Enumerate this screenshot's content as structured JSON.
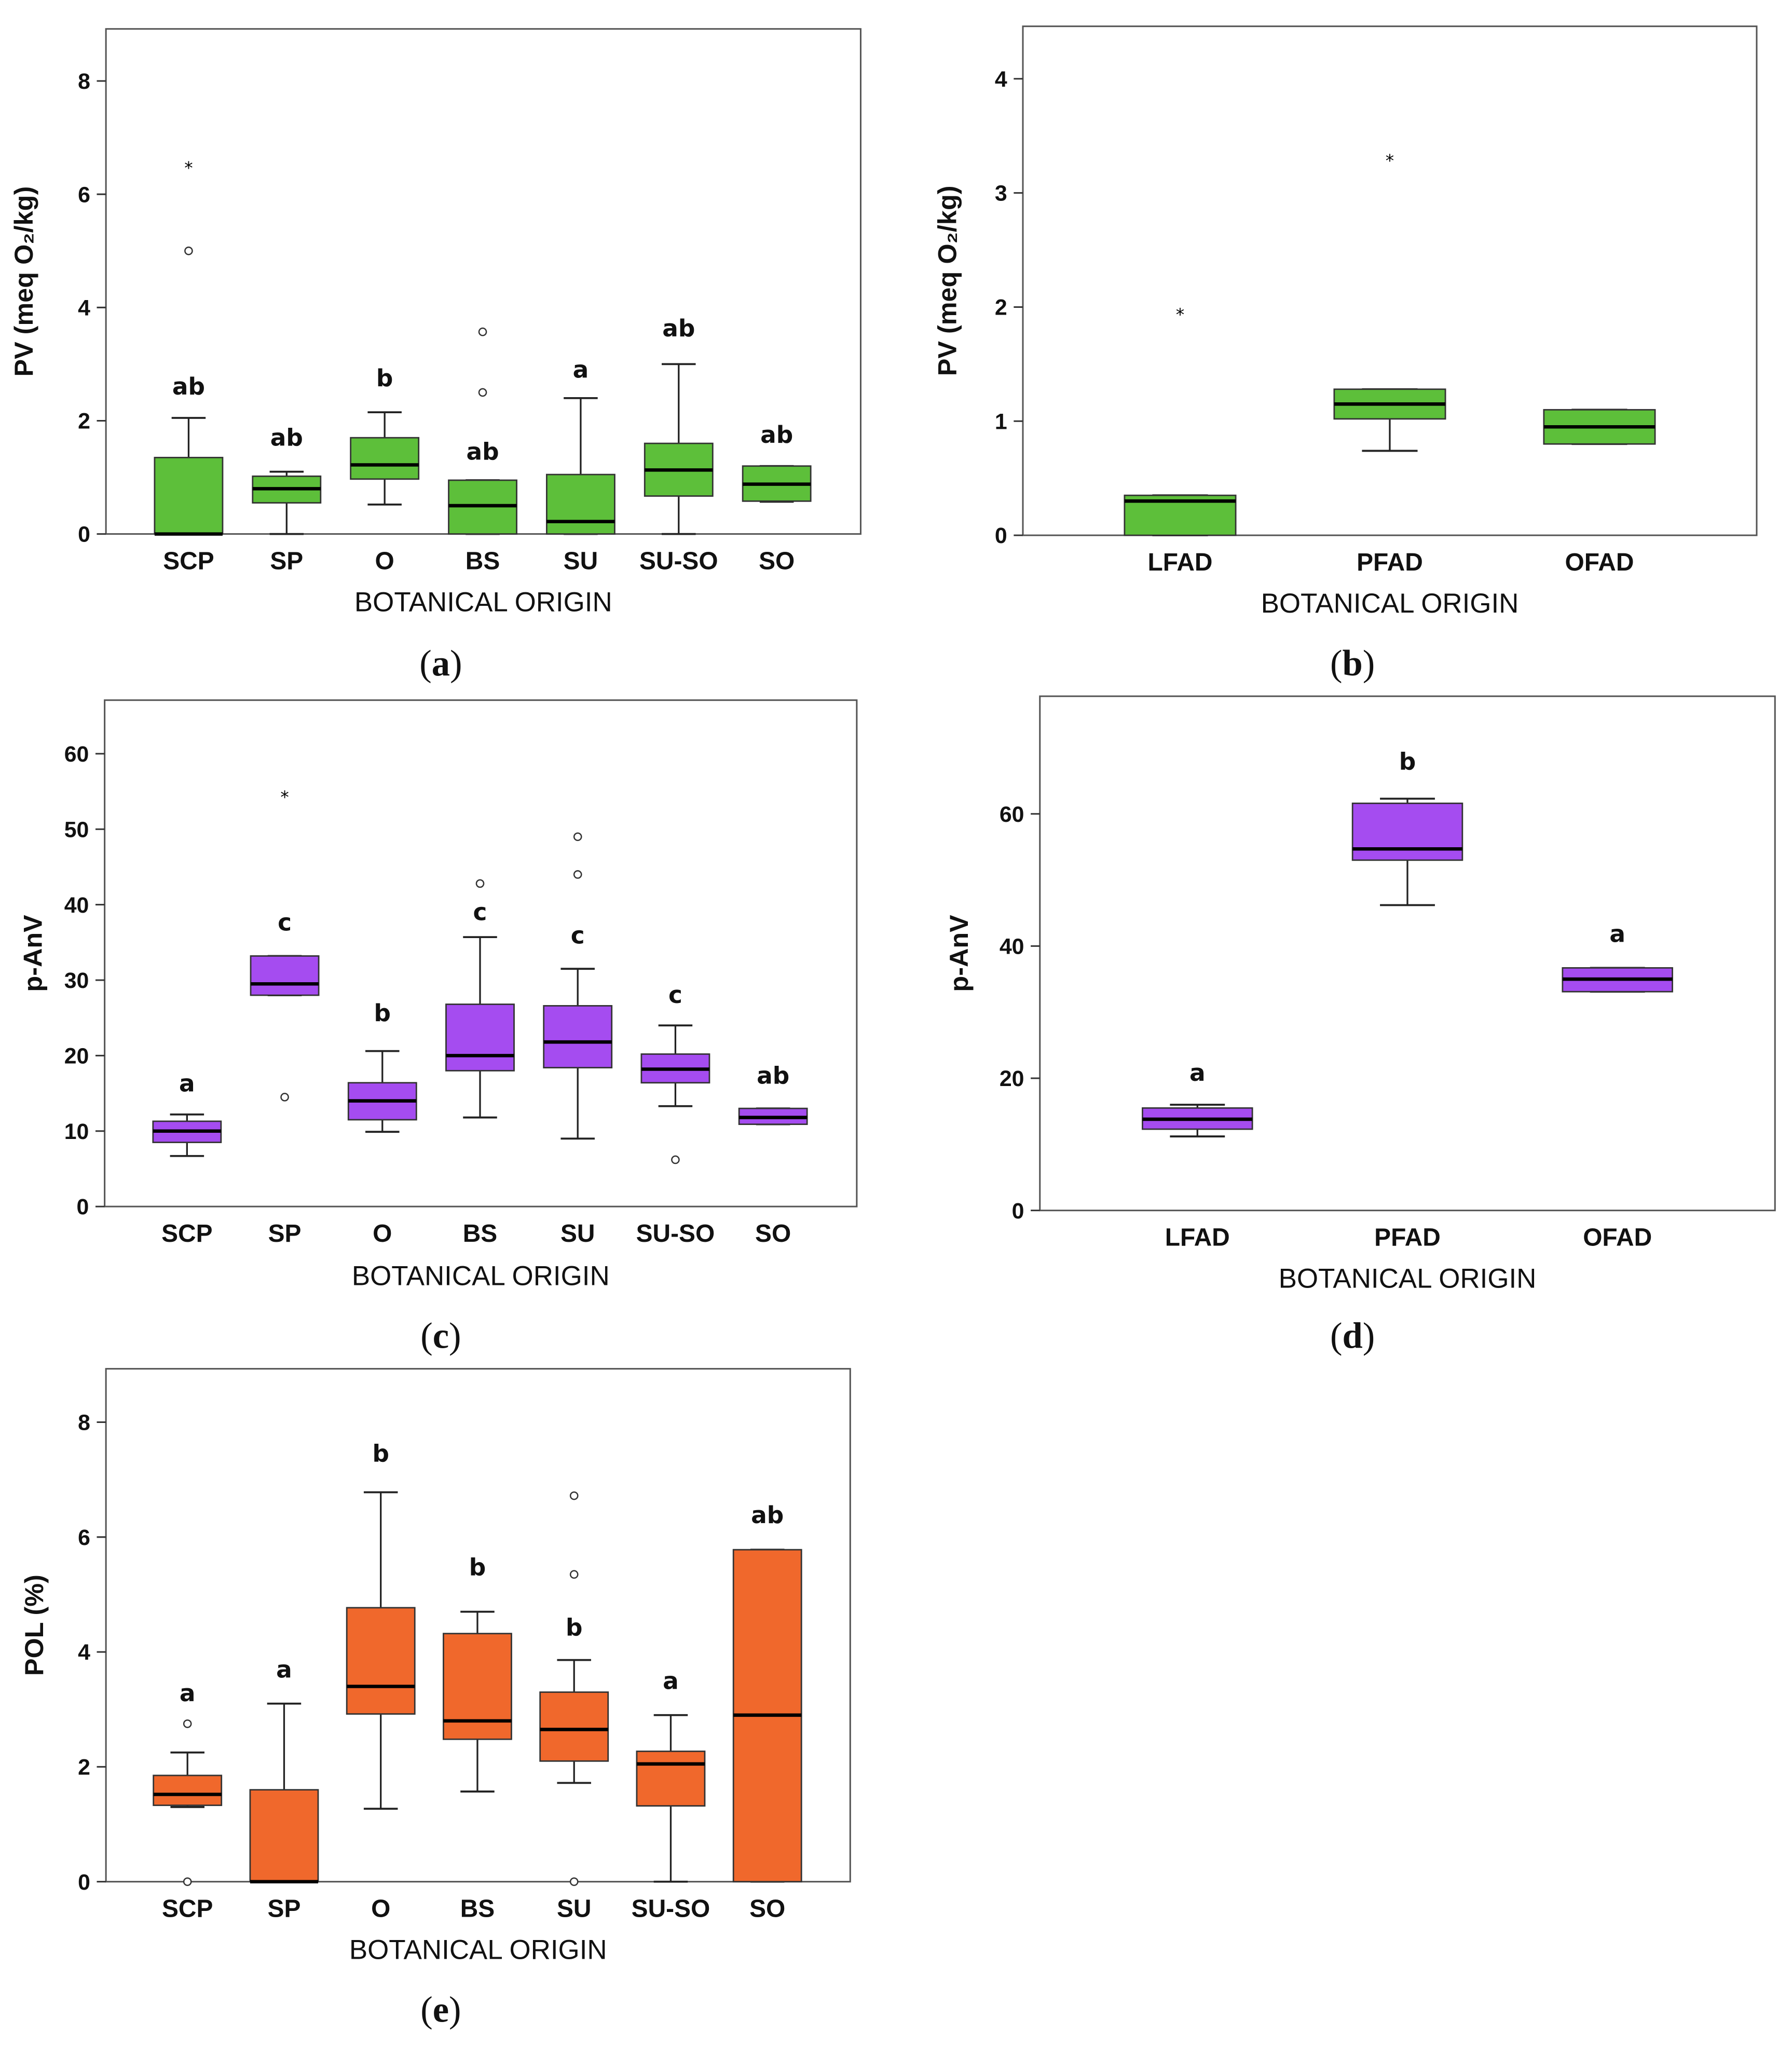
{
  "colors": {
    "pv": "#5dbf3a",
    "panv": "#a54cf0",
    "pol": "#f0682c"
  },
  "chart_data": [
    {
      "id": "a",
      "caption": "a",
      "type": "box",
      "title": "",
      "xlabel": "BOTANICAL ORIGIN",
      "ylabel": "PV (meq O₂/kg)",
      "ylim": [
        0,
        8.92
      ],
      "yticks": [
        0,
        2,
        4,
        6,
        8
      ],
      "color_key": "pv",
      "categories": [
        "SCP",
        "SP",
        "O",
        "BS",
        "SU",
        "SU-SO",
        "SO"
      ],
      "boxes": [
        {
          "min": 0,
          "q1": 0,
          "median": 0,
          "q3": 1.35,
          "max": 2.05,
          "outliers": [
            5.0
          ],
          "extremes": [
            6.5
          ],
          "letter": "ab",
          "letter_y": 2.6
        },
        {
          "min": 0,
          "q1": 0.55,
          "median": 0.8,
          "q3": 1.02,
          "max": 1.1,
          "outliers": [],
          "extremes": [],
          "letter": "ab",
          "letter_y": 1.7
        },
        {
          "min": 0.52,
          "q1": 0.97,
          "median": 1.22,
          "q3": 1.7,
          "max": 2.15,
          "outliers": [],
          "extremes": [],
          "letter": "b",
          "letter_y": 2.75
        },
        {
          "min": 0,
          "q1": 0,
          "median": 0.5,
          "q3": 0.95,
          "max": 0.95,
          "outliers": [
            2.5,
            3.57
          ],
          "extremes": [],
          "letter": "ab",
          "letter_y": 1.45
        },
        {
          "min": 0,
          "q1": 0,
          "median": 0.22,
          "q3": 1.05,
          "max": 2.4,
          "outliers": [],
          "extremes": [],
          "letter": "a",
          "letter_y": 2.9
        },
        {
          "min": 0,
          "q1": 0.67,
          "median": 1.13,
          "q3": 1.6,
          "max": 3.0,
          "outliers": [],
          "extremes": [],
          "letter": "ab",
          "letter_y": 3.63
        },
        {
          "min": 0.57,
          "q1": 0.58,
          "median": 0.88,
          "q3": 1.2,
          "max": 1.2,
          "outliers": [],
          "extremes": [],
          "letter": "ab",
          "letter_y": 1.75
        }
      ]
    },
    {
      "id": "b",
      "caption": "b",
      "type": "box",
      "title": "",
      "xlabel": "BOTANICAL ORIGIN",
      "ylabel": "PV (meq O₂/kg)",
      "ylim": [
        0,
        4.46
      ],
      "yticks": [
        0,
        1,
        2,
        3,
        4
      ],
      "color_key": "pv",
      "categories": [
        "LFAD",
        "PFAD",
        "OFAD"
      ],
      "boxes": [
        {
          "min": 0,
          "q1": 0,
          "median": 0.3,
          "q3": 0.35,
          "max": 0.35,
          "outliers": [],
          "extremes": [
            1.95
          ],
          "letter": "",
          "letter_y": 0
        },
        {
          "min": 0.74,
          "q1": 1.02,
          "median": 1.15,
          "q3": 1.28,
          "max": 1.28,
          "outliers": [],
          "extremes": [
            3.3
          ],
          "letter": "",
          "letter_y": 0
        },
        {
          "min": 0.8,
          "q1": 0.8,
          "median": 0.95,
          "q3": 1.1,
          "max": 1.1,
          "outliers": [],
          "extremes": [],
          "letter": "",
          "letter_y": 0
        }
      ]
    },
    {
      "id": "c",
      "caption": "c",
      "type": "box",
      "title": "",
      "xlabel": "BOTANICAL ORIGIN",
      "ylabel": "p-AnV",
      "ylim": [
        0,
        67.1
      ],
      "yticks": [
        0,
        10,
        20,
        30,
        40,
        50,
        60
      ],
      "color_key": "panv",
      "categories": [
        "SCP",
        "SP",
        "O",
        "BS",
        "SU",
        "SU-SO",
        "SO"
      ],
      "boxes": [
        {
          "min": 6.7,
          "q1": 8.5,
          "median": 10,
          "q3": 11.3,
          "max": 12.2,
          "outliers": [],
          "extremes": [],
          "letter": "a",
          "letter_y": 16.3
        },
        {
          "min": 28,
          "q1": 28,
          "median": 29.5,
          "q3": 33.2,
          "max": 33.2,
          "outliers": [
            14.5
          ],
          "extremes": [
            54.5
          ],
          "letter": "c",
          "letter_y": 37.6
        },
        {
          "min": 9.9,
          "q1": 11.5,
          "median": 14,
          "q3": 16.4,
          "max": 20.6,
          "outliers": [],
          "extremes": [],
          "letter": "b",
          "letter_y": 25.6
        },
        {
          "min": 11.8,
          "q1": 18,
          "median": 20,
          "q3": 26.8,
          "max": 35.7,
          "outliers": [
            42.8
          ],
          "extremes": [],
          "letter": "c",
          "letter_y": 39
        },
        {
          "min": 9,
          "q1": 18.4,
          "median": 21.8,
          "q3": 26.6,
          "max": 31.5,
          "outliers": [
            44,
            49
          ],
          "extremes": [],
          "letter": "c",
          "letter_y": 35.9
        },
        {
          "min": 13.3,
          "q1": 16.4,
          "median": 18.2,
          "q3": 20.2,
          "max": 24,
          "outliers": [
            6.2
          ],
          "extremes": [],
          "letter": "c",
          "letter_y": 28
        },
        {
          "min": 10.9,
          "q1": 10.9,
          "median": 11.8,
          "q3": 13,
          "max": 13,
          "outliers": [],
          "extremes": [],
          "letter": "ab",
          "letter_y": 17.3
        }
      ]
    },
    {
      "id": "d",
      "caption": "d",
      "type": "box",
      "title": "",
      "xlabel": "BOTANICAL ORIGIN",
      "ylabel": "p-AnV",
      "ylim": [
        0,
        77.8
      ],
      "yticks": [
        0,
        20,
        40,
        60
      ],
      "color_key": "panv",
      "categories": [
        "LFAD",
        "PFAD",
        "OFAD"
      ],
      "boxes": [
        {
          "min": 11.2,
          "q1": 12.3,
          "median": 13.8,
          "q3": 15.5,
          "max": 16,
          "outliers": [],
          "extremes": [],
          "letter": "a",
          "letter_y": 20.8
        },
        {
          "min": 46.2,
          "q1": 53,
          "median": 54.7,
          "q3": 61.6,
          "max": 62.3,
          "outliers": [],
          "extremes": [],
          "letter": "b",
          "letter_y": 67.9
        },
        {
          "min": 33.1,
          "q1": 33.1,
          "median": 35,
          "q3": 36.7,
          "max": 36.7,
          "outliers": [],
          "extremes": [],
          "letter": "a",
          "letter_y": 41.8
        }
      ]
    },
    {
      "id": "e",
      "caption": "e",
      "type": "box",
      "title": "",
      "xlabel": "BOTANICAL ORIGIN",
      "ylabel": "POL (%)",
      "ylim": [
        0,
        8.93
      ],
      "yticks": [
        0,
        2,
        4,
        6,
        8
      ],
      "color_key": "pol",
      "categories": [
        "SCP",
        "SP",
        "O",
        "BS",
        "SU",
        "SU-SO",
        "SO"
      ],
      "boxes": [
        {
          "min": 1.3,
          "q1": 1.33,
          "median": 1.52,
          "q3": 1.85,
          "max": 2.25,
          "outliers": [
            2.75,
            0
          ],
          "extremes": [],
          "letter": "a",
          "letter_y": 3.28
        },
        {
          "min": 0,
          "q1": 0,
          "median": 0,
          "q3": 1.6,
          "max": 3.1,
          "outliers": [],
          "extremes": [],
          "letter": "a",
          "letter_y": 3.69
        },
        {
          "min": 1.27,
          "q1": 2.92,
          "median": 3.4,
          "q3": 4.77,
          "max": 6.78,
          "outliers": [],
          "extremes": [],
          "letter": "b",
          "letter_y": 7.45
        },
        {
          "min": 1.57,
          "q1": 2.48,
          "median": 2.8,
          "q3": 4.32,
          "max": 4.7,
          "outliers": [],
          "extremes": [],
          "letter": "b",
          "letter_y": 5.47
        },
        {
          "min": 1.72,
          "q1": 2.1,
          "median": 2.65,
          "q3": 3.3,
          "max": 3.86,
          "outliers": [
            0,
            5.35,
            6.72
          ],
          "extremes": [],
          "letter": "b",
          "letter_y": 4.42
        },
        {
          "min": 0,
          "q1": 1.32,
          "median": 2.05,
          "q3": 2.27,
          "max": 2.9,
          "outliers": [],
          "extremes": [],
          "letter": "a",
          "letter_y": 3.49
        },
        {
          "min": 0,
          "q1": 0,
          "median": 2.9,
          "q3": 5.78,
          "max": 5.78,
          "outliers": [],
          "extremes": [],
          "letter": "ab",
          "letter_y": 6.38
        }
      ]
    }
  ]
}
